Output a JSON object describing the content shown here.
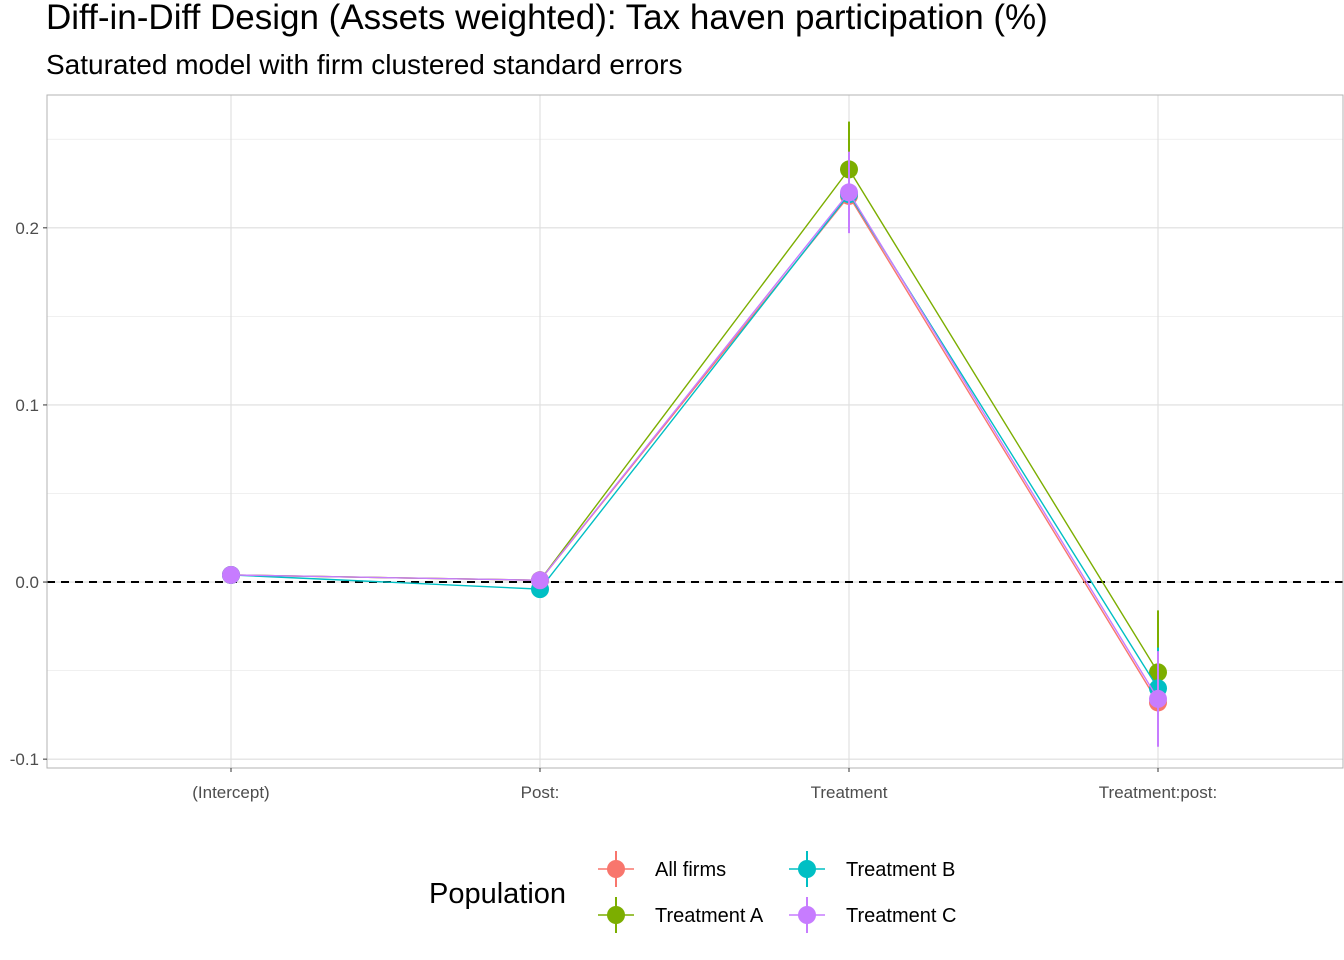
{
  "chart_data": {
    "type": "line",
    "title": "Diff-in-Diff Design (Assets weighted): Tax haven participation (%)",
    "subtitle": "Saturated model with firm clustered standard errors",
    "xlabel": "",
    "ylabel": "",
    "categories": [
      "(Intercept)",
      "Post:",
      "Treatment",
      "Treatment:post:"
    ],
    "ylim": [
      -0.105,
      0.275
    ],
    "y_ticks": [
      -0.1,
      0.0,
      0.1,
      0.2
    ],
    "y_tick_labels": [
      "-0.1",
      "0.0",
      "0.1",
      "0.2"
    ],
    "reference_line": 0,
    "grid": true,
    "legend": {
      "title": "Population",
      "position": "bottom"
    },
    "series": [
      {
        "name": "All firms",
        "color": "#F8766D",
        "values": [
          0.004,
          0.001,
          0.218,
          -0.068
        ],
        "lower": [
          0.0,
          -0.003,
          0.2,
          -0.085
        ],
        "upper": [
          0.008,
          0.005,
          0.236,
          -0.051
        ]
      },
      {
        "name": "Treatment A",
        "color": "#7CAE00",
        "values": [
          0.004,
          0.001,
          0.233,
          -0.051
        ],
        "lower": [
          0.0,
          -0.003,
          0.206,
          -0.086
        ],
        "upper": [
          0.008,
          0.005,
          0.26,
          -0.016
        ]
      },
      {
        "name": "Treatment B",
        "color": "#00BFC4",
        "values": [
          0.004,
          -0.004,
          0.219,
          -0.06
        ],
        "lower": [
          0.0,
          -0.008,
          0.203,
          -0.083
        ],
        "upper": [
          0.008,
          0.0,
          0.235,
          -0.037
        ]
      },
      {
        "name": "Treatment C",
        "color": "#C77CFF",
        "values": [
          0.004,
          0.001,
          0.22,
          -0.066
        ],
        "lower": [
          0.0,
          -0.003,
          0.197,
          -0.093
        ],
        "upper": [
          0.008,
          0.005,
          0.243,
          -0.039
        ]
      }
    ]
  }
}
